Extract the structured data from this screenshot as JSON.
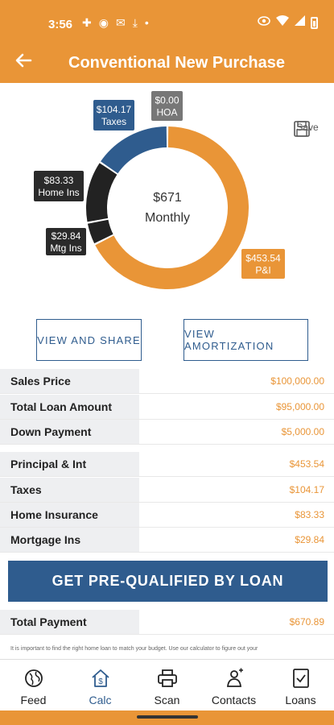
{
  "status_bar": {
    "time": "3:56"
  },
  "header": {
    "title": "Conventional New Purchase"
  },
  "chart_data": {
    "type": "pie",
    "center_amount": "$671",
    "center_label": "Monthly",
    "slices": [
      {
        "name": "P&I",
        "amount_label": "$453.54",
        "value": 453.54,
        "color": "#E99537"
      },
      {
        "name": "Mtg Ins",
        "amount_label": "$29.84",
        "value": 29.84,
        "color": "#222222"
      },
      {
        "name": "Home Ins",
        "amount_label": "$83.33",
        "value": 83.33,
        "color": "#222222"
      },
      {
        "name": "Taxes",
        "amount_label": "$104.17",
        "value": 104.17,
        "color": "#2F5C8E"
      },
      {
        "name": "HOA",
        "amount_label": "$0.00",
        "value": 0,
        "color": "#777777"
      }
    ]
  },
  "save": {
    "label": "Save"
  },
  "buttons": {
    "view_share": "VIEW AND SHARE",
    "view_amortization": "VIEW AMORTIZATION",
    "cta": "GET PRE-QUALIFIED BY LOAN"
  },
  "loan_rows": [
    {
      "label": "Sales Price",
      "value": "$100,000.00"
    },
    {
      "label": "Total Loan Amount",
      "value": "$95,000.00"
    },
    {
      "label": "Down Payment",
      "value": "$5,000.00"
    }
  ],
  "payment_rows": [
    {
      "label": "Principal & Int",
      "value": "$453.54"
    },
    {
      "label": "Taxes",
      "value": "$104.17"
    },
    {
      "label": "Home Insurance",
      "value": "$83.33"
    },
    {
      "label": "Mortgage Ins",
      "value": "$29.84"
    }
  ],
  "total": {
    "label": "Total Payment",
    "value": "$670.89"
  },
  "disclaimer": "It is important to find the right home loan to match your budget. Use our calculator to figure out your",
  "nav": [
    {
      "label": "Feed",
      "icon": "globe-icon"
    },
    {
      "label": "Calc",
      "icon": "house-dollar-icon"
    },
    {
      "label": "Scan",
      "icon": "printer-icon"
    },
    {
      "label": "Contacts",
      "icon": "contacts-icon"
    },
    {
      "label": "Loans",
      "icon": "document-check-icon"
    }
  ],
  "colors": {
    "accent": "#E99537",
    "primary": "#2F5C8E",
    "label_bg": "#EEEFF1"
  }
}
